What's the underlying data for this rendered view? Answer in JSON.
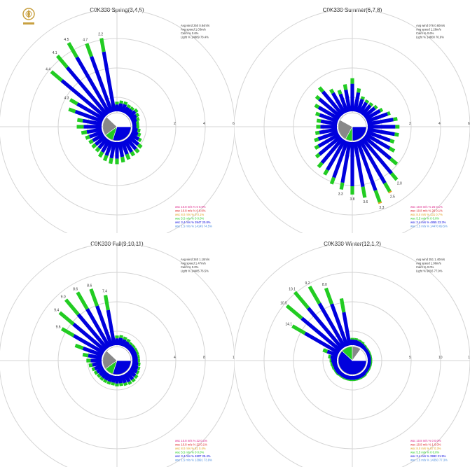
{
  "logo": {
    "icon": "compass-logo-icon",
    "color": "#c8a040"
  },
  "chart_data": [
    {
      "type": "wind-rose",
      "title": "C0K330 Spring(3,4,5)",
      "radial_ticks": [
        "2",
        "4",
        "6"
      ],
      "rmax": 6.5,
      "sector_count": 36,
      "speed_classes": [
        {
          "color": "#0000dd"
        },
        {
          "color": "#22cc22"
        },
        {
          "color": "#e0a020"
        },
        {
          "color": "#dd2222"
        }
      ],
      "petal_values": [
        [
          0.5,
          0.2,
          0,
          0
        ],
        [
          0.6,
          0.2,
          0,
          0
        ],
        [
          0.6,
          0.2,
          0,
          0
        ],
        [
          0.5,
          0.2,
          0,
          0
        ],
        [
          0.5,
          0.2,
          0,
          0
        ],
        [
          0.6,
          0.2,
          0,
          0
        ],
        [
          0.5,
          0.2,
          0,
          0
        ],
        [
          0.4,
          0.2,
          0,
          0
        ],
        [
          0.3,
          0.2,
          0,
          0
        ],
        [
          0.3,
          0.2,
          0,
          0
        ],
        [
          0.4,
          0.2,
          0,
          0
        ],
        [
          0.5,
          0.2,
          0,
          0
        ],
        [
          0.7,
          0.2,
          0,
          0
        ],
        [
          0.9,
          0.3,
          0,
          0
        ],
        [
          1.0,
          0.3,
          0,
          0
        ],
        [
          1.0,
          0.3,
          0,
          0
        ],
        [
          1.0,
          0.4,
          0,
          0
        ],
        [
          1.1,
          0.4,
          0,
          0
        ],
        [
          1.2,
          0.4,
          0,
          0
        ],
        [
          1.2,
          0.4,
          0,
          0
        ],
        [
          1.1,
          0.4,
          0,
          0
        ],
        [
          1.0,
          0.4,
          0,
          0
        ],
        [
          0.9,
          0.3,
          0,
          0
        ],
        [
          0.9,
          0.3,
          0,
          0
        ],
        [
          0.9,
          0.3,
          0,
          0
        ],
        [
          1.0,
          0.3,
          0,
          0
        ],
        [
          1.1,
          0.4,
          0,
          0
        ],
        [
          1.3,
          0.5,
          0,
          0
        ],
        [
          1.4,
          0.4,
          0,
          0
        ],
        [
          2.1,
          0.5,
          0,
          0
        ],
        [
          2.2,
          0.6,
          0,
          0
        ],
        [
          4.1,
          1.0,
          0,
          0
        ],
        [
          4.5,
          1.1,
          0,
          0
        ],
        [
          4.7,
          1.2,
          0,
          0
        ],
        [
          4.3,
          1.0,
          0,
          0
        ],
        [
          4.4,
          1.0,
          0,
          0
        ]
      ],
      "petal_labels": [
        "4.3",
        "4.4",
        "4.1",
        "4.5",
        "4.7",
        "2.2"
      ],
      "calm_pie": [
        {
          "color": "#0000dd",
          "fraction": 0.3
        },
        {
          "color": "#22cc22",
          "fraction": 0.1
        },
        {
          "color": "#888888",
          "fraction": 0.22
        },
        {
          "color": "#ffffff",
          "fraction": 0.38
        }
      ],
      "stats_lines": [
        "Avg wind 250 0.84m/s",
        "Avg speed 1.03m/s",
        "Calm %    0.6%",
        "Light %   14889 78.4%"
      ],
      "legend_rows": [
        {
          "color": "#dd2288",
          "text": "wsc 10.8 m/s  %   0  0.0%"
        },
        {
          "color": "#dd2222",
          "text": "wsc 10.8 m/s  %   0  0.0%"
        },
        {
          "color": "#e0a020",
          "text": "wsc 8.0 m/s  %    0  0.1%"
        },
        {
          "color": "#22cc22",
          "text": "wsc 5.5 m/s  %    0  0.0%"
        },
        {
          "color": "#0000dd",
          "text": "wsc 3.4 m/s  %  3947 20.8%"
        },
        {
          "color": "#4488dd",
          "text": "wsc 1.5 m/s  % 14145 74.5%"
        }
      ]
    },
    {
      "type": "wind-rose",
      "title": "C0K330 Summer(6,7,8)",
      "radial_ticks": [
        "2",
        "4",
        "6"
      ],
      "rmax": 6.5,
      "sector_count": 36,
      "speed_classes": [
        {
          "color": "#0000dd"
        },
        {
          "color": "#22cc22"
        },
        {
          "color": "#e0a020"
        },
        {
          "color": "#dd2222"
        }
      ],
      "petal_values": [
        [
          2.0,
          0.4,
          0,
          0
        ],
        [
          1.4,
          0.3,
          0,
          0
        ],
        [
          1.0,
          0.2,
          0,
          0
        ],
        [
          0.9,
          0.2,
          0,
          0
        ],
        [
          0.9,
          0.2,
          0,
          0
        ],
        [
          1.0,
          0.2,
          0,
          0
        ],
        [
          1.2,
          0.2,
          0,
          0
        ],
        [
          1.6,
          0.2,
          0,
          0
        ],
        [
          1.9,
          0.3,
          0,
          0
        ],
        [
          2.0,
          0.3,
          0,
          0
        ],
        [
          2.0,
          0.3,
          0,
          0
        ],
        [
          1.8,
          0.3,
          0,
          0
        ],
        [
          2.0,
          0.4,
          0,
          0
        ],
        [
          2.5,
          0.6,
          0,
          0
        ],
        [
          3.3,
          0.6,
          0,
          0
        ],
        [
          3.6,
          0.7,
          0.1,
          0
        ],
        [
          3.8,
          0.9,
          0.1,
          0
        ],
        [
          3.3,
          0.8,
          0,
          0
        ],
        [
          3.2,
          0.6,
          0,
          0
        ],
        [
          3.0,
          0.5,
          0,
          0
        ],
        [
          2.8,
          0.5,
          0,
          0
        ],
        [
          2.5,
          0.4,
          0,
          0
        ],
        [
          2.3,
          0.4,
          0,
          0
        ],
        [
          2.0,
          0.3,
          0,
          0
        ],
        [
          1.7,
          0.3,
          0,
          0
        ],
        [
          1.5,
          0.3,
          0,
          0
        ],
        [
          1.3,
          0.3,
          0,
          0
        ],
        [
          1.2,
          0.3,
          0,
          0
        ],
        [
          1.2,
          0.3,
          0,
          0
        ],
        [
          1.4,
          0.3,
          0,
          0
        ],
        [
          1.7,
          0.3,
          0,
          0
        ],
        [
          2.0,
          0.3,
          0,
          0
        ],
        [
          2.2,
          0.4,
          0,
          0
        ],
        [
          1.7,
          0.3,
          0,
          0
        ],
        [
          1.4,
          0.3,
          0,
          0
        ],
        [
          1.6,
          0.4,
          0,
          0
        ]
      ],
      "petal_labels": [
        "2.0",
        "2.5",
        "3.3",
        "3.6",
        "3.8",
        "3.3"
      ],
      "calm_pie": [
        {
          "color": "#0000dd",
          "fraction": 0.25
        },
        {
          "color": "#22cc22",
          "fraction": 0.08
        },
        {
          "color": "#888888",
          "fraction": 0.25
        },
        {
          "color": "#ffffff",
          "fraction": 0.42
        }
      ],
      "stats_lines": [
        "Avg wind 076 0.60m/s",
        "Avg speed 1.28m/s",
        "Calm %    0.6%",
        "Light %   14800 76.9%"
      ],
      "legend_rows": [
        {
          "color": "#dd2288",
          "text": "wsc 10.8 m/s  %  25  0.1%"
        },
        {
          "color": "#dd2222",
          "text": "wsc 10.8 m/s  %  26  0.1%"
        },
        {
          "color": "#e0a020",
          "text": "wsc 8.0 m/s  %  131  0.7%"
        },
        {
          "color": "#22cc22",
          "text": "wsc 5.5 m/s  %    0  0.0%"
        },
        {
          "color": "#0000dd",
          "text": "wsc 3.4 m/s  % 4855 23.3%"
        },
        {
          "color": "#4488dd",
          "text": "wsc 1.5 m/s  % 14470 69.5%"
        }
      ]
    },
    {
      "type": "wind-rose",
      "title": "C0K330 Fall(9,10,11)",
      "radial_ticks": [
        "4",
        "8",
        "12"
      ],
      "rmax": 13,
      "sector_count": 36,
      "speed_classes": [
        {
          "color": "#0000dd"
        },
        {
          "color": "#22cc22"
        },
        {
          "color": "#e0a020"
        },
        {
          "color": "#dd2222"
        }
      ],
      "petal_values": [
        [
          1.0,
          0.4,
          0,
          0
        ],
        [
          1.1,
          0.4,
          0,
          0
        ],
        [
          1.0,
          0.4,
          0,
          0
        ],
        [
          0.9,
          0.4,
          0,
          0
        ],
        [
          0.8,
          0.3,
          0,
          0
        ],
        [
          0.8,
          0.3,
          0,
          0
        ],
        [
          0.8,
          0.3,
          0,
          0
        ],
        [
          0.8,
          0.3,
          0,
          0
        ],
        [
          0.8,
          0.3,
          0,
          0
        ],
        [
          0.8,
          0.3,
          0,
          0
        ],
        [
          0.9,
          0.3,
          0,
          0
        ],
        [
          1.0,
          0.3,
          0,
          0
        ],
        [
          1.1,
          0.3,
          0,
          0
        ],
        [
          1.2,
          0.4,
          0,
          0
        ],
        [
          1.3,
          0.4,
          0,
          0
        ],
        [
          1.3,
          0.4,
          0,
          0
        ],
        [
          1.2,
          0.4,
          0,
          0
        ],
        [
          1.1,
          0.4,
          0,
          0
        ],
        [
          1.1,
          0.4,
          0,
          0
        ],
        [
          1.0,
          0.4,
          0,
          0
        ],
        [
          1.0,
          0.4,
          0,
          0
        ],
        [
          1.0,
          0.4,
          0,
          0
        ],
        [
          1.0,
          0.4,
          0,
          0
        ],
        [
          1.0,
          0.4,
          0,
          0
        ],
        [
          1.1,
          0.4,
          0,
          0
        ],
        [
          1.2,
          0.4,
          0,
          0
        ],
        [
          1.4,
          0.5,
          0,
          0
        ],
        [
          1.6,
          0.6,
          0,
          0
        ],
        [
          2.0,
          0.8,
          0,
          0
        ],
        [
          3.0,
          1.2,
          0,
          0
        ],
        [
          5.0,
          2.0,
          0,
          0
        ],
        [
          6.0,
          2.6,
          0,
          0
        ],
        [
          6.5,
          2.8,
          0,
          0
        ],
        [
          6.4,
          2.8,
          0,
          0
        ],
        [
          6.2,
          2.6,
          0,
          0
        ],
        [
          5.2,
          2.2,
          0,
          0
        ]
      ],
      "petal_labels": [
        "9.6",
        "9.4",
        "9.0",
        "8.6",
        "8.6",
        "7.4"
      ],
      "calm_pie": [
        {
          "color": "#0000dd",
          "fraction": 0.3
        },
        {
          "color": "#22cc22",
          "fraction": 0.1
        },
        {
          "color": "#888888",
          "fraction": 0.22
        },
        {
          "color": "#ffffff",
          "fraction": 0.38
        }
      ],
      "stats_lines": [
        "Avg wind 340 1.10m/s",
        "Avg speed 1.47m/s",
        "Calm %    0.0%",
        "Light %   14485 76.5%"
      ],
      "legend_rows": [
        {
          "color": "#dd2288",
          "text": "wsc 10.8 m/s  %  22  0.1%"
        },
        {
          "color": "#dd2222",
          "text": "wsc 10.8 m/s  %  22  0.1%"
        },
        {
          "color": "#e0a020",
          "text": "wsc 8.0 m/s  %   81  0.4%"
        },
        {
          "color": "#22cc22",
          "text": "wsc 5.5 m/s  %    0  0.0%"
        },
        {
          "color": "#0000dd",
          "text": "wsc 3.4 m/s  % 4807 25.4%"
        },
        {
          "color": "#4488dd",
          "text": "wsc 1.5 m/s  % 13991 73.9%"
        }
      ]
    },
    {
      "type": "wind-rose",
      "title": "C0K330 Winter(12,1,2)",
      "radial_ticks": [
        "5",
        "10",
        "15"
      ],
      "rmax": 16,
      "sector_count": 36,
      "speed_classes": [
        {
          "color": "#0000dd"
        },
        {
          "color": "#22cc22"
        },
        {
          "color": "#e0a020"
        },
        {
          "color": "#dd2222"
        }
      ],
      "petal_values": [
        [
          1.0,
          0.3,
          0,
          0
        ],
        [
          1.0,
          0.3,
          0,
          0
        ],
        [
          0.9,
          0.3,
          0,
          0
        ],
        [
          0.8,
          0.3,
          0,
          0
        ],
        [
          0.7,
          0.2,
          0,
          0
        ],
        [
          0.6,
          0.2,
          0,
          0
        ],
        [
          0.6,
          0.2,
          0,
          0
        ],
        [
          0.6,
          0.2,
          0,
          0
        ],
        [
          0.6,
          0.2,
          0,
          0
        ],
        [
          0.6,
          0.2,
          0,
          0
        ],
        [
          0.6,
          0.2,
          0,
          0
        ],
        [
          0.6,
          0.2,
          0,
          0
        ],
        [
          0.6,
          0.2,
          0,
          0
        ],
        [
          0.6,
          0.2,
          0,
          0
        ],
        [
          0.7,
          0.2,
          0,
          0
        ],
        [
          0.7,
          0.2,
          0,
          0
        ],
        [
          0.7,
          0.2,
          0,
          0
        ],
        [
          0.7,
          0.2,
          0,
          0
        ],
        [
          0.7,
          0.2,
          0,
          0
        ],
        [
          0.7,
          0.2,
          0,
          0
        ],
        [
          0.7,
          0.2,
          0,
          0
        ],
        [
          0.7,
          0.2,
          0,
          0
        ],
        [
          0.7,
          0.2,
          0,
          0
        ],
        [
          0.8,
          0.2,
          0,
          0
        ],
        [
          0.8,
          0.2,
          0,
          0
        ],
        [
          0.8,
          0.3,
          0,
          0
        ],
        [
          0.9,
          0.3,
          0,
          0
        ],
        [
          1.0,
          0.3,
          0,
          0
        ],
        [
          1.2,
          0.4,
          0,
          0
        ],
        [
          2.0,
          0.8,
          0,
          0
        ],
        [
          7.0,
          2.6,
          0,
          0
        ],
        [
          9.0,
          3.5,
          0,
          0
        ],
        [
          9.5,
          3.7,
          0,
          0
        ],
        [
          9.0,
          3.5,
          0,
          0
        ],
        [
          8.0,
          3.0,
          0,
          0
        ],
        [
          6.0,
          2.5,
          0,
          0
        ]
      ],
      "petal_labels": [
        "14.1",
        "10.5",
        "10.1",
        "9.2",
        "8.0"
      ],
      "calm_pie": [
        {
          "color": "#0000dd",
          "fraction": 0.62
        },
        {
          "color": "#22cc22",
          "fraction": 0.13
        },
        {
          "color": "#888888",
          "fraction": 0.1
        },
        {
          "color": "#ffffff",
          "fraction": 0.15
        }
      ],
      "stats_lines": [
        "Avg wind 351 1.40m/s",
        "Avg speed 1.96m/s",
        "Calm %    0.0%",
        "Light %   9016 77.9%"
      ],
      "legend_rows": [
        {
          "color": "#dd2288",
          "text": "wsc 10.8 m/s  %   0  0.0%"
        },
        {
          "color": "#dd2222",
          "text": "wsc 10.8 m/s  %   1  0.0%"
        },
        {
          "color": "#e0a020",
          "text": "wsc 8.0 m/s  %   57  0.3%"
        },
        {
          "color": "#22cc22",
          "text": "wsc 5.5 m/s  %    0  0.0%"
        },
        {
          "color": "#0000dd",
          "text": "wsc 3.4 m/s  % 3992 21.5%"
        },
        {
          "color": "#4488dd",
          "text": "wsc 1.5 m/s  % 14350 77.3%"
        }
      ]
    }
  ]
}
